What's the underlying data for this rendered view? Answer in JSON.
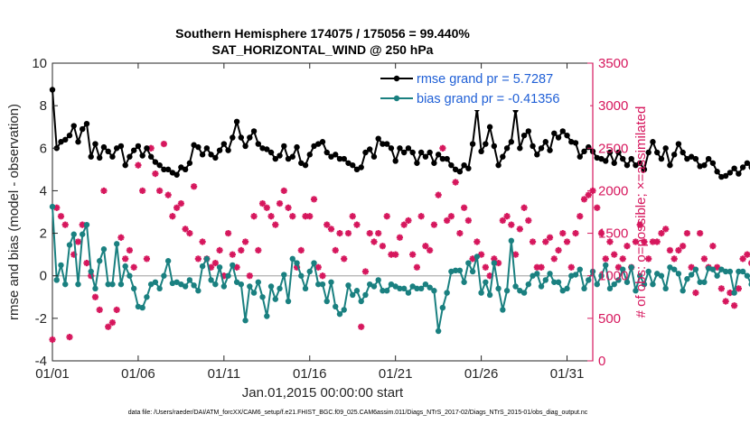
{
  "chart_data": {
    "type": "line",
    "title": "Southern Hemisphere 174075 / 175056 = 99.440%",
    "subtitle": "SAT_HORIZONTAL_WIND @ 250 hPa",
    "xlabel": "Jan.01,2015 00:00:00 start",
    "ylabel": "rmse and bias (model - observation)",
    "y2label": "# of obs: o=possible; ×=assimilated",
    "footnote": "data file: /Users/raeder/DAI/ATM_forcXX/CAM6_setup/f.e21.FHIST_BGC.f09_025.CAM6assim.011/Diags_NTrS_2017-02/Diags_NTrS_2015-01/obs_diag_output.nc",
    "xlim": [
      0,
      31.5
    ],
    "ylim": [
      -4,
      10
    ],
    "y2lim": [
      0,
      3500
    ],
    "xticks": [
      0,
      5,
      10,
      15,
      20,
      25,
      30
    ],
    "xticklabels": [
      "01/01",
      "01/06",
      "01/11",
      "01/16",
      "01/21",
      "01/26",
      "01/31"
    ],
    "yticks": [
      -4,
      -2,
      0,
      2,
      4,
      6,
      8,
      10
    ],
    "y2ticks": [
      0,
      500,
      1000,
      1500,
      2000,
      2500,
      3000,
      3500
    ],
    "legend_position": "top-right",
    "step": 0.25,
    "series": [
      {
        "name": "rmse grand pr = 5.7287",
        "color": "#000000",
        "axis": "left",
        "values": [
          8.75,
          6.0,
          6.3,
          6.4,
          6.6,
          7.05,
          6.3,
          6.9,
          7.15,
          5.6,
          6.2,
          5.55,
          6.05,
          5.85,
          5.6,
          6.0,
          6.1,
          5.2,
          5.6,
          5.9,
          6.1,
          5.65,
          6.0,
          5.6,
          5.35,
          5.2,
          5.0,
          5.0,
          4.85,
          4.75,
          5.1,
          5.0,
          5.3,
          6.15,
          6.05,
          5.7,
          6.0,
          5.7,
          5.55,
          5.9,
          6.2,
          5.9,
          6.5,
          7.25,
          6.5,
          6.1,
          6.5,
          6.8,
          6.2,
          6.0,
          5.95,
          5.8,
          5.5,
          5.65,
          6.1,
          5.5,
          5.6,
          6.05,
          5.3,
          5.2,
          5.7,
          6.1,
          6.2,
          6.3,
          5.8,
          5.6,
          5.7,
          5.5,
          5.5,
          5.3,
          5.2,
          5.0,
          5.1,
          5.8,
          5.95,
          5.6,
          6.45,
          6.2,
          6.2,
          6.0,
          5.4,
          6.0,
          5.8,
          6.0,
          5.8,
          5.3,
          5.8,
          5.6,
          5.8,
          5.3,
          5.7,
          5.5,
          5.5,
          5.2,
          5.0,
          4.9,
          5.2,
          5.05,
          6.2,
          7.85,
          5.85,
          6.2,
          7.0,
          6.1,
          5.2,
          5.6,
          6.0,
          6.3,
          7.8,
          6.0,
          6.6,
          6.8,
          6.1,
          5.7,
          6.0,
          6.3,
          5.9,
          6.7,
          6.5,
          6.8,
          6.6,
          6.3,
          6.25,
          5.6,
          5.85,
          6.05,
          5.85,
          5.55,
          5.5,
          5.4,
          5.8,
          5.3,
          5.8,
          5.5,
          5.2,
          5.5,
          5.2,
          5.3,
          5.0,
          5.8,
          6.3,
          5.8,
          5.5,
          6.0,
          5.2,
          5.7,
          6.2,
          5.8,
          5.5,
          5.6,
          5.5,
          5.15,
          5.2,
          5.5,
          5.3,
          4.9,
          4.65,
          4.7,
          4.85,
          5.05,
          4.8,
          5.1,
          5.3,
          5.1,
          5.5,
          5.3,
          5.9,
          5.2,
          5.35,
          5.75,
          5.5,
          5.95,
          6.0,
          6.15,
          5.9,
          5.8,
          5.2,
          6.05,
          5.8,
          6.25,
          6.1,
          5.6,
          5.75,
          5.5,
          6.85,
          6.2,
          5.85,
          6.05,
          6.1,
          6.25,
          6.45
        ]
      },
      {
        "name": "bias grand pr = -0.41356",
        "color": "#1a8080",
        "axis": "left",
        "values": [
          3.25,
          -0.2,
          0.5,
          -0.4,
          1.45,
          1.95,
          -0.4,
          1.95,
          2.4,
          0.2,
          -0.6,
          0.7,
          1.25,
          -0.4,
          -0.4,
          1.5,
          -0.4,
          0.45,
          0.0,
          -0.6,
          -1.45,
          -1.5,
          -1.0,
          -0.4,
          -0.3,
          -0.6,
          0.0,
          0.7,
          -0.35,
          -0.3,
          -0.4,
          -0.5,
          -0.2,
          -0.45,
          -0.7,
          0.45,
          0.8,
          -0.2,
          -0.4,
          0.4,
          -0.5,
          0.0,
          0.5,
          -0.3,
          -0.4,
          -2.1,
          -0.5,
          -0.8,
          -0.3,
          -1.0,
          -1.9,
          -0.5,
          -1.1,
          -0.6,
          0.05,
          -1.2,
          0.8,
          0.6,
          0.0,
          -0.6,
          0.2,
          0.6,
          -0.4,
          -0.4,
          -1.2,
          -0.3,
          -1.45,
          -1.8,
          -1.6,
          -0.45,
          -0.9,
          -0.7,
          -1.2,
          -0.9,
          -0.4,
          -0.5,
          -0.2,
          -0.7,
          -0.7,
          -0.4,
          -0.5,
          -0.6,
          -0.6,
          -0.8,
          -0.5,
          -0.6,
          -0.6,
          -0.4,
          -0.55,
          -0.7,
          -2.6,
          -1.5,
          -0.8,
          0.2,
          0.25,
          0.25,
          -0.3,
          0.6,
          0.2,
          0.9,
          -0.8,
          -0.3,
          -0.9,
          0.6,
          -0.6,
          -1.6,
          -0.7,
          1.65,
          -0.5,
          -0.7,
          -0.8,
          -0.4,
          0.0,
          0.1,
          -0.5,
          -0.2,
          0.1,
          -0.3,
          -0.3,
          -0.7,
          -0.6,
          0.0,
          0.05,
          0.3,
          -0.6,
          -0.2,
          0.2,
          -0.4,
          0.0,
          0.5,
          -0.6,
          -0.4,
          -0.2,
          0.3,
          -0.3,
          0.4,
          -0.7,
          0.0,
          -0.4,
          0.2,
          -0.4,
          0.1,
          0.0,
          -0.6,
          0.4,
          0.3,
          0.1,
          -0.7,
          -0.15,
          0.05,
          0.3,
          -0.3,
          -0.3,
          0.35,
          0.3,
          0.0,
          0.3,
          0.2,
          0.2,
          -0.8,
          0.2,
          0.2,
          0.0,
          -0.4,
          -0.25,
          0.3,
          0.1,
          0.35,
          -0.2,
          -0.3,
          -0.1,
          -0.4,
          -0.4,
          -0.1,
          -0.3,
          -0.6,
          0.2,
          0.1,
          -0.4,
          0.2,
          -0.2,
          -0.6,
          -0.5,
          -0.1,
          -0.9,
          -1.0,
          -1.1,
          -1.1
        ]
      },
      {
        "name": "# of obs assimilated",
        "color": "#d6175d",
        "axis": "right",
        "values": [
          250,
          1800,
          1700,
          1600,
          280,
          1250,
          1400,
          1600,
          1150,
          1000,
          750,
          600,
          2000,
          400,
          450,
          600,
          1450,
          1200,
          1300,
          1100,
          2300,
          2000,
          1200,
          2500,
          2200,
          2000,
          2550,
          1950,
          1700,
          1800,
          1850,
          1550,
          1500,
          2050,
          1200,
          1400,
          1200,
          1100,
          1150,
          1300,
          1000,
          1500,
          1250,
          1100,
          1300,
          1400,
          1000,
          1700,
          1300,
          1850,
          1800,
          1700,
          1600,
          1850,
          2000,
          1800,
          1700,
          1100,
          1300,
          1700,
          1700,
          1900,
          1100,
          1000,
          1600,
          1550,
          1300,
          1500,
          1200,
          1500,
          1700,
          1600,
          400,
          1050,
          1500,
          1400,
          1500,
          1350,
          1700,
          1250,
          1250,
          1450,
          1600,
          1650,
          1250,
          1100,
          1700,
          1350,
          1300,
          1600,
          1950,
          2500,
          1650,
          1700,
          2100,
          1500,
          1800,
          1650,
          1200,
          1400,
          1250,
          1100,
          1000,
          1200,
          1150,
          1650,
          1700,
          1600,
          1250,
          1550,
          1800,
          1650,
          1400,
          1100,
          1100,
          1400,
          1450,
          1200,
          1300,
          1500,
          1400,
          1100,
          1500,
          1700,
          1900,
          1950,
          2000,
          1800,
          1500,
          1200,
          1400,
          1250,
          1100,
          1200,
          1350,
          1100,
          1400,
          1600,
          1400,
          1200,
          1400,
          1400,
          1500,
          1550,
          1300,
          1200,
          1300,
          1350,
          1500,
          1100,
          800,
          1500,
          1200,
          1100,
          1350,
          1100,
          850,
          700,
          800,
          650,
          850,
          1200,
          1250,
          1150,
          1350,
          1050,
          1100,
          1100,
          1300,
          1150,
          1200,
          1000,
          1200,
          1200,
          1500,
          1300,
          1400,
          1400,
          1200,
          1200,
          1000,
          1050,
          1250,
          1300,
          1200,
          1500,
          1500,
          1550,
          1700,
          1200,
          1000,
          1400,
          1100,
          1450,
          1550,
          1550,
          1350,
          1200,
          1450,
          0
        ]
      }
    ]
  }
}
